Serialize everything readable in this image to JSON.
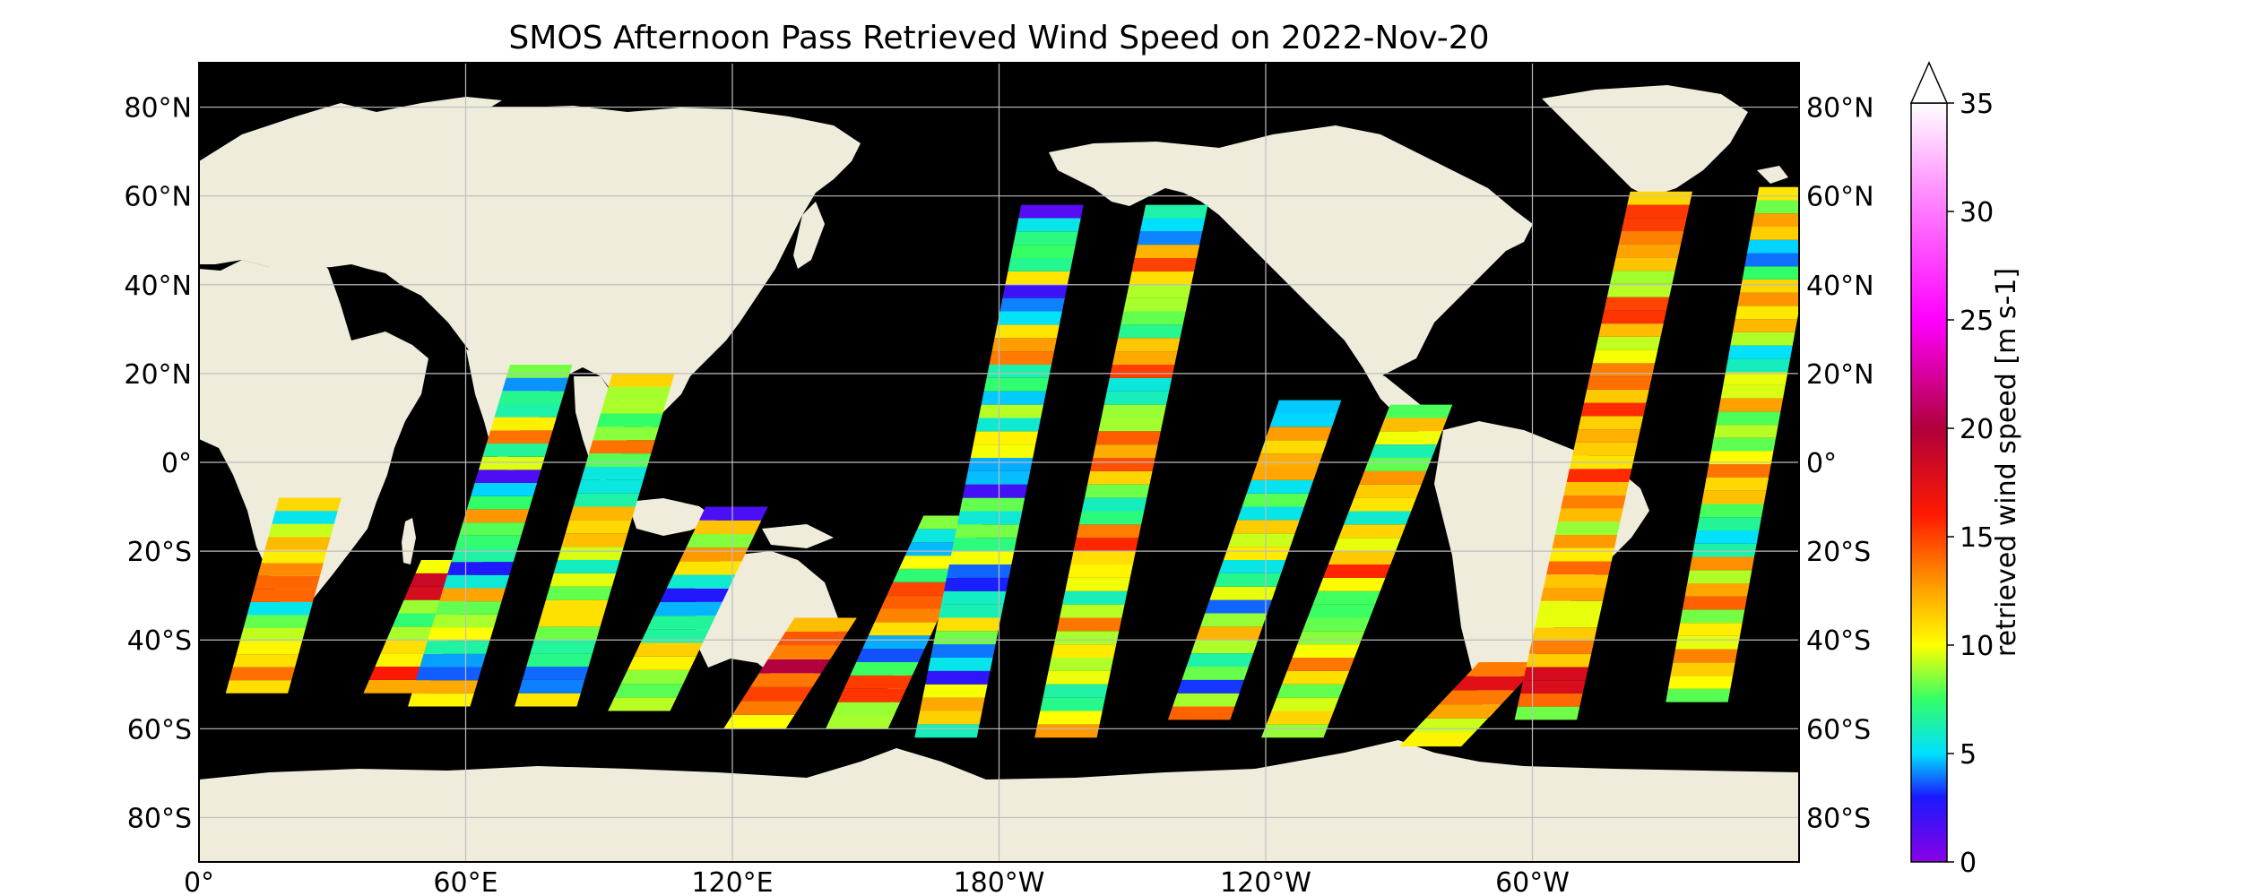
{
  "title": "SMOS Afternoon Pass Retrieved Wind Speed on 2022-Nov-20",
  "map": {
    "projection": "PlateCarree",
    "central_longitude": 180,
    "lon_range": [
      0,
      360
    ],
    "lat_range": [
      -90,
      90
    ],
    "gridlines": true,
    "colors": {
      "ocean": "#000000",
      "land": "#efecdc",
      "grid": "#bdbdbd"
    },
    "lat_labels_left": [
      "80°N",
      "60°N",
      "40°N",
      "20°N",
      "0°",
      "20°S",
      "40°S",
      "60°S",
      "80°S"
    ],
    "lat_labels_right": [
      "80°N",
      "60°N",
      "40°N",
      "20°N",
      "0°",
      "20°S",
      "40°S",
      "60°S",
      "80°S"
    ],
    "lat_values": [
      80,
      60,
      40,
      20,
      0,
      -20,
      -40,
      -60,
      -80
    ],
    "lon_labels": [
      "0°",
      "60°E",
      "120°E",
      "180°W",
      "120°W",
      "60°W"
    ],
    "lon_values": [
      0,
      60,
      120,
      180,
      240,
      300
    ]
  },
  "colorbar": {
    "label": "retrieved wind speed [m s-1]",
    "ticks": [
      "0",
      "5",
      "10",
      "15",
      "20",
      "25",
      "30",
      "35"
    ],
    "tick_values": [
      0,
      5,
      10,
      15,
      20,
      25,
      30,
      35
    ],
    "range": [
      0,
      35
    ],
    "extend": "max",
    "colormap_stops": [
      {
        "v": 0,
        "c": "#8a00e6"
      },
      {
        "v": 3,
        "c": "#1a1aff"
      },
      {
        "v": 5,
        "c": "#00e0ff"
      },
      {
        "v": 7.5,
        "c": "#33ff66"
      },
      {
        "v": 10,
        "c": "#ffff00"
      },
      {
        "v": 12.5,
        "c": "#ffa500"
      },
      {
        "v": 16,
        "c": "#ff1a00"
      },
      {
        "v": 20,
        "c": "#b0003a"
      },
      {
        "v": 25,
        "c": "#ff00ff"
      },
      {
        "v": 30,
        "c": "#ff77ff"
      },
      {
        "v": 35,
        "c": "#ffffff"
      }
    ]
  },
  "swaths": [
    {
      "lon_s": 6,
      "lon_n": 18,
      "lat_s": -52,
      "lat_n": -8,
      "mean_wind": 11
    },
    {
      "lon_s": 37,
      "lon_n": 50,
      "lat_s": -52,
      "lat_n": -22,
      "mean_wind": 12
    },
    {
      "lon_s": 47,
      "lon_n": 70,
      "lat_s": -55,
      "lat_n": 22,
      "mean_wind": 8
    },
    {
      "lon_s": 71,
      "lon_n": 93,
      "lat_s": -55,
      "lat_n": 20,
      "mean_wind": 9
    },
    {
      "lon_s": 92,
      "lon_n": 114,
      "lat_s": -56,
      "lat_n": -10,
      "mean_wind": 8
    },
    {
      "lon_s": 118,
      "lon_n": 134,
      "lat_s": -60,
      "lat_n": -35,
      "mean_wind": 14
    },
    {
      "lon_s": 141,
      "lon_n": 163,
      "lat_s": -60,
      "lat_n": -12,
      "mean_wind": 10
    },
    {
      "lon_s": 161,
      "lon_n": 185,
      "lat_s": -62,
      "lat_n": 58,
      "mean_wind": 8
    },
    {
      "lon_s": 188,
      "lon_n": 213,
      "lat_s": -62,
      "lat_n": 58,
      "mean_wind": 9
    },
    {
      "lon_s": 218,
      "lon_n": 243,
      "lat_s": -58,
      "lat_n": 14,
      "mean_wind": 9
    },
    {
      "lon_s": 239,
      "lon_n": 268,
      "lat_s": -62,
      "lat_n": 13,
      "mean_wind": 11
    },
    {
      "lon_s": 270,
      "lon_n": 288,
      "lat_s": -64,
      "lat_n": -45,
      "mean_wind": 13
    },
    {
      "lon_s": 296,
      "lon_n": 322,
      "lat_s": -58,
      "lat_n": 61,
      "mean_wind": 12
    },
    {
      "lon_s": 330,
      "lon_n": 351,
      "lat_s": -54,
      "lat_n": 62,
      "mean_wind": 10
    }
  ]
}
